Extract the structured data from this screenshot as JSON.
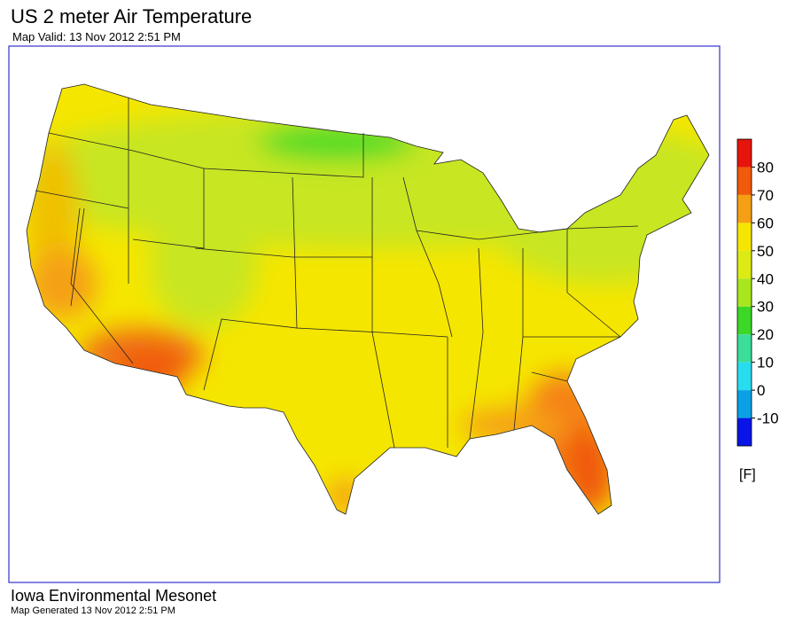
{
  "header": {
    "title": "US 2 meter Air Temperature",
    "subtitle": "Map Valid: 13 Nov 2012 2:51 PM"
  },
  "footer": {
    "org": "Iowa Environmental Mesonet",
    "generated": "Map Generated 13 Nov 2012 2:51 PM"
  },
  "colorbar": {
    "lim": [
      -20,
      90
    ],
    "ticks": [
      -10,
      0,
      10,
      20,
      30,
      40,
      50,
      60,
      70,
      80
    ],
    "colors": [
      "#0a14e6",
      "#0aa0e6",
      "#28dcf0",
      "#3cdc9a",
      "#3cd828",
      "#a8e61e",
      "#dceb14",
      "#f5e600",
      "#f5a014",
      "#f05a0a",
      "#e6140a"
    ],
    "unit": "[F]"
  }
}
